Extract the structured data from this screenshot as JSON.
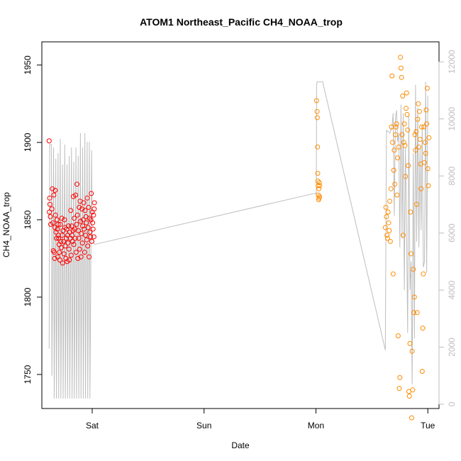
{
  "chart_data": {
    "type": "scatter",
    "title": "ATOM1 Northeast_Pacific CH4_NOAA_trop",
    "xlabel": "Date",
    "ylabel": "CH4_NOAA_trop",
    "x_unit": "days",
    "xlim": [
      -0.45,
      3.1
    ],
    "ylim": [
      1728,
      1965
    ],
    "y2lim": [
      -150,
      12700
    ],
    "x_ticks": [
      {
        "value": 0,
        "label": "Sat"
      },
      {
        "value": 1,
        "label": "Sun"
      },
      {
        "value": 2,
        "label": "Mon"
      },
      {
        "value": 3,
        "label": "Tue"
      }
    ],
    "y_ticks": [
      1750,
      1800,
      1850,
      1900,
      1950
    ],
    "y2_ticks": [
      0,
      2000,
      4000,
      6000,
      8000,
      10000,
      12000
    ],
    "grid": false,
    "legend": "none",
    "colors": {
      "series1": "#ff0000",
      "series2": "#ff8c00",
      "altitude": "#bebebe",
      "axis": "#000000",
      "axis2": "#bebebe"
    },
    "series": [
      {
        "axis": "left",
        "style": "points",
        "color": "#ff0000",
        "x": [
          -0.385,
          -0.383,
          -0.38,
          -0.378,
          -0.374,
          -0.371,
          -0.36,
          -0.356,
          -0.351,
          -0.347,
          -0.343,
          -0.339,
          -0.336,
          -0.334,
          -0.331,
          -0.328,
          -0.323,
          -0.319,
          -0.315,
          -0.311,
          -0.308,
          -0.305,
          -0.302,
          -0.299,
          -0.296,
          -0.293,
          -0.289,
          -0.285,
          -0.28,
          -0.276,
          -0.272,
          -0.268,
          -0.264,
          -0.26,
          -0.256,
          -0.252,
          -0.248,
          -0.244,
          -0.24,
          -0.236,
          -0.232,
          -0.228,
          -0.224,
          -0.22,
          -0.216,
          -0.212,
          -0.208,
          -0.204,
          -0.2,
          -0.196,
          -0.192,
          -0.188,
          -0.184,
          -0.18,
          -0.176,
          -0.172,
          -0.168,
          -0.164,
          -0.16,
          -0.156,
          -0.152,
          -0.148,
          -0.144,
          -0.14,
          -0.136,
          -0.132,
          -0.128,
          -0.124,
          -0.12,
          -0.116,
          -0.112,
          -0.108,
          -0.104,
          -0.1,
          -0.096,
          -0.092,
          -0.088,
          -0.084,
          -0.08,
          -0.076,
          -0.072,
          -0.068,
          -0.064,
          -0.06,
          -0.056,
          -0.052,
          -0.048,
          -0.044,
          -0.04,
          -0.036,
          -0.032,
          -0.028,
          -0.024,
          -0.02,
          -0.016,
          -0.012,
          -0.008,
          -0.004,
          0.0,
          0.004,
          0.008,
          0.012,
          0.015,
          0.018,
          0.02
        ],
        "y": [
          1901,
          1855,
          1864,
          1860,
          1852,
          1847,
          1857,
          1870,
          1848,
          1830,
          1866,
          1829,
          1825,
          1845,
          1869,
          1853,
          1842,
          1838,
          1850,
          1844,
          1826,
          1847,
          1840,
          1838,
          1834,
          1829,
          1824,
          1847,
          1836,
          1832,
          1851,
          1840,
          1822,
          1843,
          1836,
          1828,
          1850,
          1845,
          1833,
          1825,
          1838,
          1844,
          1823,
          1840,
          1835,
          1846,
          1831,
          1824,
          1842,
          1838,
          1856,
          1827,
          1846,
          1840,
          1836,
          1843,
          1865,
          1834,
          1851,
          1844,
          1838,
          1866,
          1829,
          1847,
          1873,
          1853,
          1825,
          1843,
          1838,
          1858,
          1831,
          1862,
          1849,
          1826,
          1841,
          1857,
          1835,
          1846,
          1850,
          1861,
          1844,
          1829,
          1856,
          1840,
          1852,
          1848,
          1837,
          1864,
          1833,
          1845,
          1858,
          1826,
          1851,
          1842,
          1839,
          1850,
          1867,
          1836,
          1855,
          1848,
          1844,
          1853,
          1839,
          1857,
          1861
        ]
      },
      {
        "axis": "left",
        "style": "points",
        "color": "#ff8c00",
        "x": [
          2.005,
          2.01,
          2.012,
          2.014,
          2.016,
          2.018,
          2.02,
          2.022,
          2.024,
          2.026,
          2.028,
          2.03,
          2.032,
          2.034,
          2.62,
          2.625,
          2.63,
          2.635,
          2.64,
          2.645,
          2.65,
          2.655,
          2.66,
          2.665,
          2.67,
          2.675,
          2.68,
          2.685,
          2.69,
          2.695,
          2.7,
          2.705,
          2.71,
          2.715,
          2.72,
          2.725,
          2.73,
          2.735,
          2.74,
          2.745,
          2.75,
          2.755,
          2.76,
          2.765,
          2.77,
          2.775,
          2.78,
          2.785,
          2.79,
          2.795,
          2.8,
          2.805,
          2.81,
          2.815,
          2.82,
          2.825,
          2.83,
          2.835,
          2.84,
          2.845,
          2.85,
          2.855,
          2.86,
          2.865,
          2.87,
          2.875,
          2.88,
          2.885,
          2.89,
          2.895,
          2.9,
          2.905,
          2.91,
          2.915,
          2.92,
          2.925,
          2.93,
          2.935,
          2.94,
          2.945,
          2.95,
          2.955,
          2.96,
          2.965,
          2.97,
          2.975,
          2.98,
          2.985,
          2.99,
          2.995,
          3.0,
          3.005,
          3.01
        ],
        "y": [
          1927,
          1920,
          1916,
          1897,
          1880,
          1875,
          1872,
          1866,
          1863,
          1870,
          1864,
          1874,
          1865,
          1872,
          1845,
          1858,
          1852,
          1840,
          1838,
          1855,
          1848,
          1843,
          1862,
          1836,
          1870,
          1910,
          1943,
          1900,
          1815,
          1882,
          1895,
          1873,
          1905,
          1910,
          1912,
          1866,
          1890,
          1775,
          1897,
          1741,
          1748,
          1955,
          1948,
          1942,
          1905,
          1930,
          1840,
          1900,
          1912,
          1898,
          1878,
          1922,
          1932,
          1918,
          1908,
          1885,
          1739,
          1736,
          1770,
          1855,
          1828,
          1722,
          1765,
          1740,
          1818,
          1790,
          1800,
          1905,
          1895,
          1907,
          1860,
          1790,
          1915,
          1925,
          1897,
          1920,
          1902,
          1886,
          1870,
          1910,
          1752,
          1780,
          1815,
          1910,
          1887,
          1900,
          1893,
          1921,
          1912,
          1935,
          1883,
          1872,
          1903
        ]
      },
      {
        "axis": "right",
        "style": "line",
        "color": "#bebebe",
        "x": [
          -0.385,
          -0.38,
          -0.365,
          -0.36,
          -0.345,
          -0.34,
          -0.325,
          -0.32,
          -0.305,
          -0.3,
          -0.285,
          -0.28,
          -0.265,
          -0.26,
          -0.245,
          -0.24,
          -0.225,
          -0.22,
          -0.205,
          -0.2,
          -0.185,
          -0.18,
          -0.165,
          -0.16,
          -0.145,
          -0.14,
          -0.125,
          -0.12,
          -0.105,
          -0.1,
          -0.085,
          -0.08,
          -0.065,
          -0.06,
          -0.045,
          -0.04,
          -0.025,
          -0.02,
          -0.005,
          0.0,
          0.015,
          0.02,
          2.0,
          2.003,
          2.006,
          2.01,
          2.02,
          2.03,
          2.06,
          2.62,
          2.63,
          2.66,
          2.68,
          2.69,
          2.7,
          2.71,
          2.72,
          2.73,
          2.74,
          2.75,
          2.76,
          2.77,
          2.78,
          2.79,
          2.8,
          2.81,
          2.82,
          2.83,
          2.84,
          2.85,
          2.86,
          2.87,
          2.88,
          2.89,
          2.9,
          2.91,
          2.92,
          2.93,
          2.94,
          2.95,
          2.96,
          2.97,
          2.98,
          2.99,
          3.0
        ],
        "y": [
          1950,
          9100,
          9100,
          1000,
          9000,
          200,
          8600,
          200,
          8800,
          200,
          9300,
          200,
          8400,
          200,
          9100,
          200,
          8400,
          200,
          8700,
          200,
          9000,
          200,
          8500,
          200,
          9000,
          200,
          8700,
          200,
          9500,
          200,
          9000,
          200,
          9500,
          200,
          9200,
          200,
          9200,
          200,
          8900,
          5800,
          5700,
          5600,
          7400,
          7300,
          11200,
          11300,
          11300,
          11300,
          11300,
          1900,
          9600,
          9500,
          9700,
          10200,
          6600,
          10000,
          10300,
          9200,
          9500,
          5500,
          10500,
          5800,
          10200,
          4000,
          9000,
          6000,
          2500,
          10100,
          4000,
          5000,
          700,
          8800,
          2300,
          11200,
          5700,
          10400,
          5500,
          9000,
          6100,
          9800,
          4800,
          5000,
          11300,
          4600,
          10800
        ]
      }
    ]
  }
}
